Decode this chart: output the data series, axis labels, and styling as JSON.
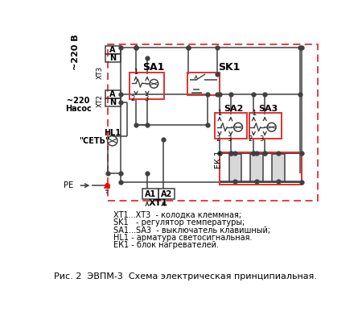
{
  "title": "Рис. 2  ЭВПМ-3  Схема электрическая принципиальная.",
  "legend_lines": [
    "ХТ1...ХТ3  - колодка клеммная;",
    "SK1   - регулятор температуры;",
    "SA1...SA3  - выключатель клавишный;",
    "HL1 - арматура светосигнальная.",
    "ЕК1 - блок нагревателей."
  ],
  "bg_color": "#ffffff",
  "line_color": "#404040",
  "red_color": "#e03030",
  "dashed_border_color": "#e03030"
}
